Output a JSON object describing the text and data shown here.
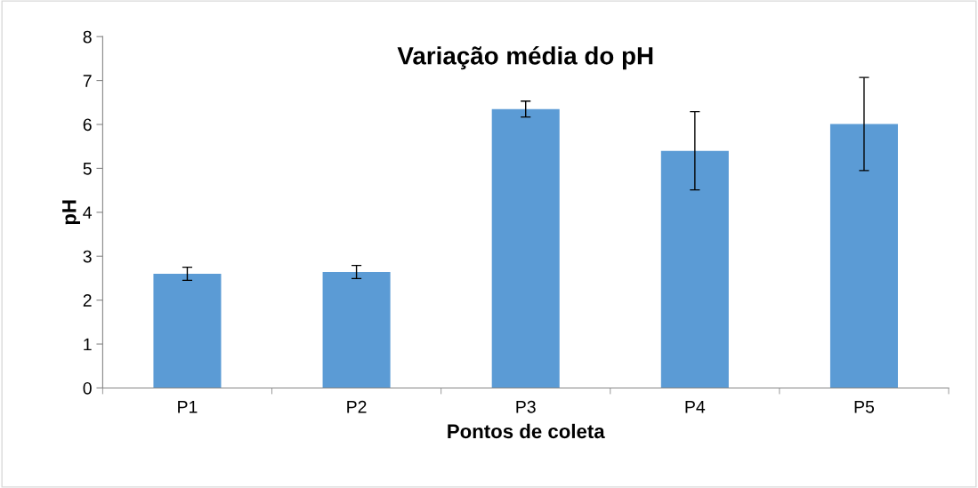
{
  "chart_data": {
    "type": "bar",
    "title": "Variação média do pH",
    "xlabel": "Pontos de coleta",
    "ylabel": "pH",
    "categories": [
      "P1",
      "P2",
      "P3",
      "P4",
      "P5"
    ],
    "values": [
      2.6,
      2.64,
      6.35,
      5.4,
      6.01
    ],
    "errors": [
      0.15,
      0.15,
      0.18,
      0.89,
      1.06
    ],
    "color": "#5b9bd5",
    "ylim": [
      0,
      8
    ],
    "yticks": [
      0,
      1,
      2,
      3,
      4,
      5,
      6,
      7,
      8
    ],
    "grid": false
  }
}
